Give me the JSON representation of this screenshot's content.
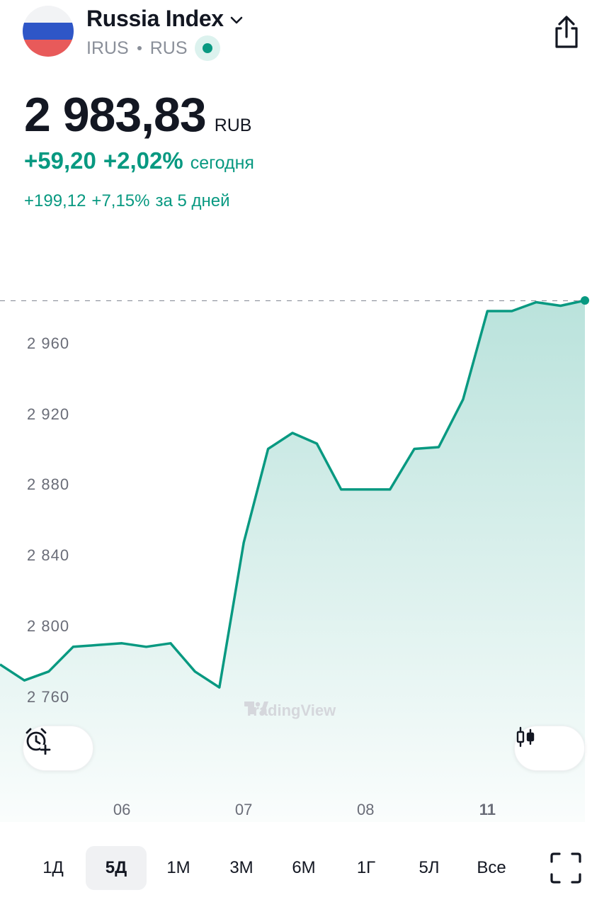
{
  "header": {
    "title": "Russia Index",
    "ticker": "IRUS",
    "exchange": "RUS",
    "flag_colors": [
      "#ffffff",
      "#2e56c7",
      "#e85a5a"
    ],
    "icons": [
      "chevron-down-icon",
      "share-icon",
      "live-status-dot-icon"
    ]
  },
  "quote": {
    "price": "2 983,83",
    "currency": "RUB",
    "change_abs": "+59,20",
    "change_pct": "+2,02%",
    "change_label": "сегодня",
    "period_change_abs": "+199,12",
    "period_change_pct": "+7,15%",
    "period_label": "за 5 дней",
    "up_color": "#089981"
  },
  "chart_data": {
    "type": "area",
    "title": "",
    "xlabel": "",
    "ylabel": "",
    "x_ticks": [
      "06",
      "07",
      "08",
      "11"
    ],
    "y_ticks": [
      "2 960",
      "2 920",
      "2 880",
      "2 840",
      "2 800",
      "2 760"
    ],
    "y_tick_values": [
      2960,
      2920,
      2880,
      2840,
      2800,
      2760
    ],
    "ylim": [
      2741,
      2984
    ],
    "grid": false,
    "last_value": 2983.83,
    "line_color": "#089981",
    "fill_color": "#089981",
    "series": [
      {
        "values": [
          2778,
          2769,
          2774,
          2788,
          2789,
          2790,
          2788,
          2790,
          2774,
          2765,
          2847,
          2900,
          2909,
          2903,
          2877,
          2877,
          2877,
          2900,
          2901,
          2928,
          2978,
          2978,
          2983,
          2981,
          2984
        ]
      }
    ]
  },
  "chart_tools": {
    "alert_icon": "alarm-plus-icon",
    "chart_type_icon": "candlestick-icon"
  },
  "watermark": "TradingView",
  "tabs": [
    {
      "label": "1Д",
      "active": false
    },
    {
      "label": "5Д",
      "active": true
    },
    {
      "label": "1М",
      "active": false
    },
    {
      "label": "3М",
      "active": false
    },
    {
      "label": "6М",
      "active": false
    },
    {
      "label": "1Г",
      "active": false
    },
    {
      "label": "5Л",
      "active": false
    },
    {
      "label": "Все",
      "active": false
    }
  ],
  "fullscreen_icon": "fullscreen-icon"
}
